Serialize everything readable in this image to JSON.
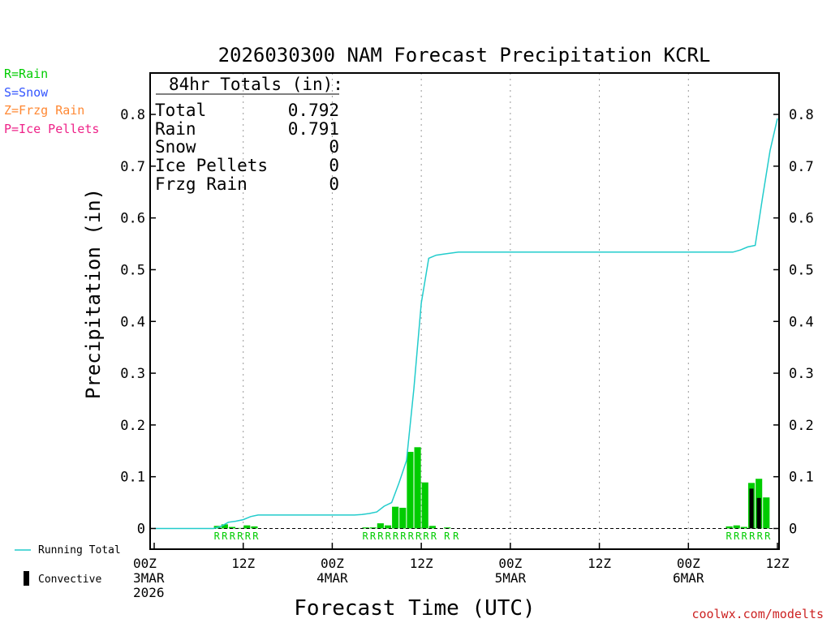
{
  "title": "2026030300 NAM Forecast Precipitation KCRL",
  "legend_ptype": [
    {
      "label": "R=Rain",
      "color": "#00cc00"
    },
    {
      "label": "S=Snow",
      "color": "#3355ff"
    },
    {
      "label": "Z=Frzg Rain",
      "color": "#ff8833"
    },
    {
      "label": "P=Ice Pellets",
      "color": "#ee2288"
    }
  ],
  "totals_box": {
    "header": "84hr Totals (in):",
    "rows": [
      {
        "label": "Total",
        "value": "0.792"
      },
      {
        "label": "Rain",
        "value": "0.791"
      },
      {
        "label": "Snow",
        "value": "0"
      },
      {
        "label": "Ice Pellets",
        "value": "0"
      },
      {
        "label": "Frzg Rain",
        "value": "0"
      }
    ]
  },
  "legend_bottom": {
    "running_total": "Running Total",
    "convective": "Convective"
  },
  "ylabel": "Precipitation (in)",
  "xlabel": "Forecast Time (UTC)",
  "credit": "coolwx.com/modelts",
  "colors": {
    "rain_bar": "#00cc00",
    "convective_bar": "#000000",
    "running_total": "#22cccc",
    "ptype_label": "#00cc00",
    "credit": "#cc2222",
    "grid": "#999999"
  },
  "chart_data": {
    "type": "bar",
    "x_unit": "forecast hour",
    "xlim": [
      0,
      84
    ],
    "ylim": [
      -0.04,
      0.88
    ],
    "yticks": [
      0,
      0.1,
      0.2,
      0.3,
      0.4,
      0.5,
      0.6,
      0.7,
      0.8
    ],
    "grid": "vertical dotted every 12h",
    "xticks": [
      {
        "hour": 0,
        "lines": [
          "00Z",
          "3MAR",
          "2026"
        ]
      },
      {
        "hour": 12,
        "lines": [
          "12Z"
        ]
      },
      {
        "hour": 24,
        "lines": [
          "00Z",
          "4MAR"
        ]
      },
      {
        "hour": 36,
        "lines": [
          "12Z"
        ]
      },
      {
        "hour": 48,
        "lines": [
          "00Z",
          "5MAR"
        ]
      },
      {
        "hour": 60,
        "lines": [
          "12Z"
        ]
      },
      {
        "hour": 72,
        "lines": [
          "00Z",
          "6MAR"
        ]
      },
      {
        "hour": 84,
        "lines": [
          "12Z"
        ]
      }
    ],
    "hourly_precip": [
      {
        "hour": 9,
        "value": 0.005
      },
      {
        "hour": 10,
        "value": 0.008
      },
      {
        "hour": 11,
        "value": 0.003
      },
      {
        "hour": 12,
        "value": 0.001
      },
      {
        "hour": 13,
        "value": 0.006
      },
      {
        "hour": 14,
        "value": 0.004
      },
      {
        "hour": 29,
        "value": 0.002
      },
      {
        "hour": 30,
        "value": 0.002
      },
      {
        "hour": 31,
        "value": 0.01
      },
      {
        "hour": 32,
        "value": 0.006
      },
      {
        "hour": 33,
        "value": 0.042
      },
      {
        "hour": 34,
        "value": 0.04
      },
      {
        "hour": 35,
        "value": 0.148
      },
      {
        "hour": 36,
        "value": 0.157
      },
      {
        "hour": 37,
        "value": 0.089
      },
      {
        "hour": 38,
        "value": 0.005
      },
      {
        "hour": 40,
        "value": 0.002
      },
      {
        "hour": 78,
        "value": 0.004
      },
      {
        "hour": 79,
        "value": 0.006
      },
      {
        "hour": 80,
        "value": 0.003
      },
      {
        "hour": 81,
        "value": 0.088
      },
      {
        "hour": 82,
        "value": 0.096
      },
      {
        "hour": 83,
        "value": 0.06
      }
    ],
    "convective": [
      {
        "hour": 81,
        "value": 0.077
      },
      {
        "hour": 82,
        "value": 0.059
      }
    ],
    "running_total": [
      [
        0,
        0
      ],
      [
        8,
        0
      ],
      [
        9,
        0.004
      ],
      [
        10,
        0.012
      ],
      [
        11,
        0.014
      ],
      [
        12,
        0.017
      ],
      [
        13,
        0.023
      ],
      [
        14,
        0.026
      ],
      [
        27,
        0.026
      ],
      [
        28,
        0.027
      ],
      [
        29,
        0.029
      ],
      [
        30,
        0.032
      ],
      [
        31,
        0.043
      ],
      [
        32,
        0.05
      ],
      [
        33,
        0.088
      ],
      [
        34,
        0.131
      ],
      [
        35,
        0.27
      ],
      [
        36,
        0.435
      ],
      [
        37,
        0.522
      ],
      [
        38,
        0.528
      ],
      [
        39,
        0.53
      ],
      [
        41,
        0.534
      ],
      [
        78,
        0.534
      ],
      [
        79,
        0.538
      ],
      [
        80,
        0.544
      ],
      [
        81,
        0.547
      ],
      [
        82,
        0.64
      ],
      [
        83,
        0.73
      ],
      [
        84,
        0.792
      ]
    ],
    "ptype_labels": [
      {
        "start_hour": 9,
        "text": "RRRRRR"
      },
      {
        "start_hour": 29,
        "text": "RRRRRRRRRR"
      },
      {
        "start_hour": 40,
        "text": "RR"
      },
      {
        "start_hour": 78,
        "text": "RRRRRR"
      }
    ]
  }
}
